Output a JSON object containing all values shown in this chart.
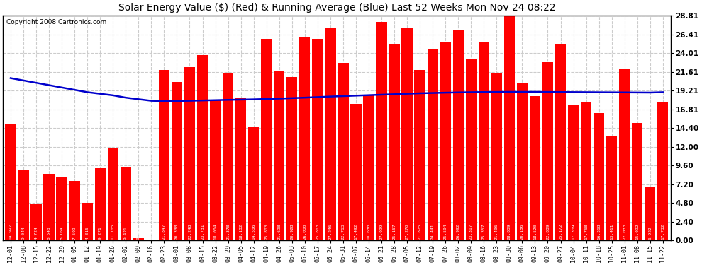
{
  "title": "Solar Energy Value ($) (Red) & Running Average (Blue) Last 52 Weeks Mon Nov 24 08:22",
  "copyright": "Copyright 2008 Cartronics.com",
  "bar_color": "#ff0000",
  "line_color": "#0000cc",
  "background_color": "#ffffff",
  "plot_bg_color": "#ffffff",
  "grid_color": "#cccccc",
  "categories": [
    "12-01",
    "12-08",
    "12-15",
    "12-22",
    "12-29",
    "01-05",
    "01-12",
    "01-19",
    "01-26",
    "02-02",
    "02-09",
    "02-16",
    "02-23",
    "03-01",
    "03-08",
    "03-15",
    "03-22",
    "03-29",
    "04-05",
    "04-12",
    "04-19",
    "04-26",
    "05-03",
    "05-10",
    "05-17",
    "05-24",
    "05-31",
    "06-07",
    "06-14",
    "06-21",
    "06-28",
    "07-05",
    "07-12",
    "07-19",
    "07-26",
    "08-02",
    "08-09",
    "08-16",
    "08-23",
    "08-30",
    "09-06",
    "09-13",
    "09-20",
    "09-27",
    "10-04",
    "10-11",
    "10-18",
    "10-25",
    "11-01",
    "11-08",
    "11-15",
    "11-22"
  ],
  "values": [
    14.997,
    9.044,
    4.724,
    8.543,
    8.164,
    7.599,
    4.815,
    9.271,
    11.765,
    9.421,
    0.317,
    0.0,
    21.847,
    20.338,
    22.248,
    23.731,
    18.004,
    21.378,
    18.182,
    14.506,
    25.803,
    21.698,
    20.928,
    26.0,
    25.863,
    27.246,
    22.763,
    17.492,
    18.63,
    27.999,
    25.157,
    27.27,
    21.825,
    24.441,
    25.504,
    26.992,
    23.317,
    25.357,
    21.406,
    28.809,
    20.186,
    18.52,
    22.889,
    25.172,
    17.309,
    17.758,
    16.368,
    13.411,
    22.033,
    15.092,
    6.922,
    17.732
  ],
  "running_avg": [
    20.8,
    20.5,
    20.2,
    19.9,
    19.6,
    19.3,
    19.0,
    18.8,
    18.6,
    18.3,
    18.1,
    17.9,
    17.85,
    17.87,
    17.9,
    17.94,
    17.98,
    18.02,
    18.05,
    18.08,
    18.13,
    18.18,
    18.24,
    18.3,
    18.37,
    18.44,
    18.5,
    18.56,
    18.62,
    18.68,
    18.74,
    18.8,
    18.86,
    18.9,
    18.94,
    18.97,
    19.0,
    19.02,
    19.03,
    19.04,
    19.04,
    19.04,
    19.03,
    19.02,
    19.01,
    19.0,
    18.99,
    18.98,
    18.97,
    18.96,
    18.95,
    19.0
  ],
  "yticks": [
    0.0,
    2.4,
    4.8,
    7.2,
    9.6,
    12.0,
    14.4,
    16.81,
    19.21,
    21.61,
    24.01,
    26.41,
    28.81
  ],
  "ymax": 28.81,
  "title_fontsize": 10,
  "bar_value_fontsize": 4.5,
  "xtick_fontsize": 6.0,
  "ytick_fontsize": 7.5,
  "copyright_fontsize": 6.5
}
